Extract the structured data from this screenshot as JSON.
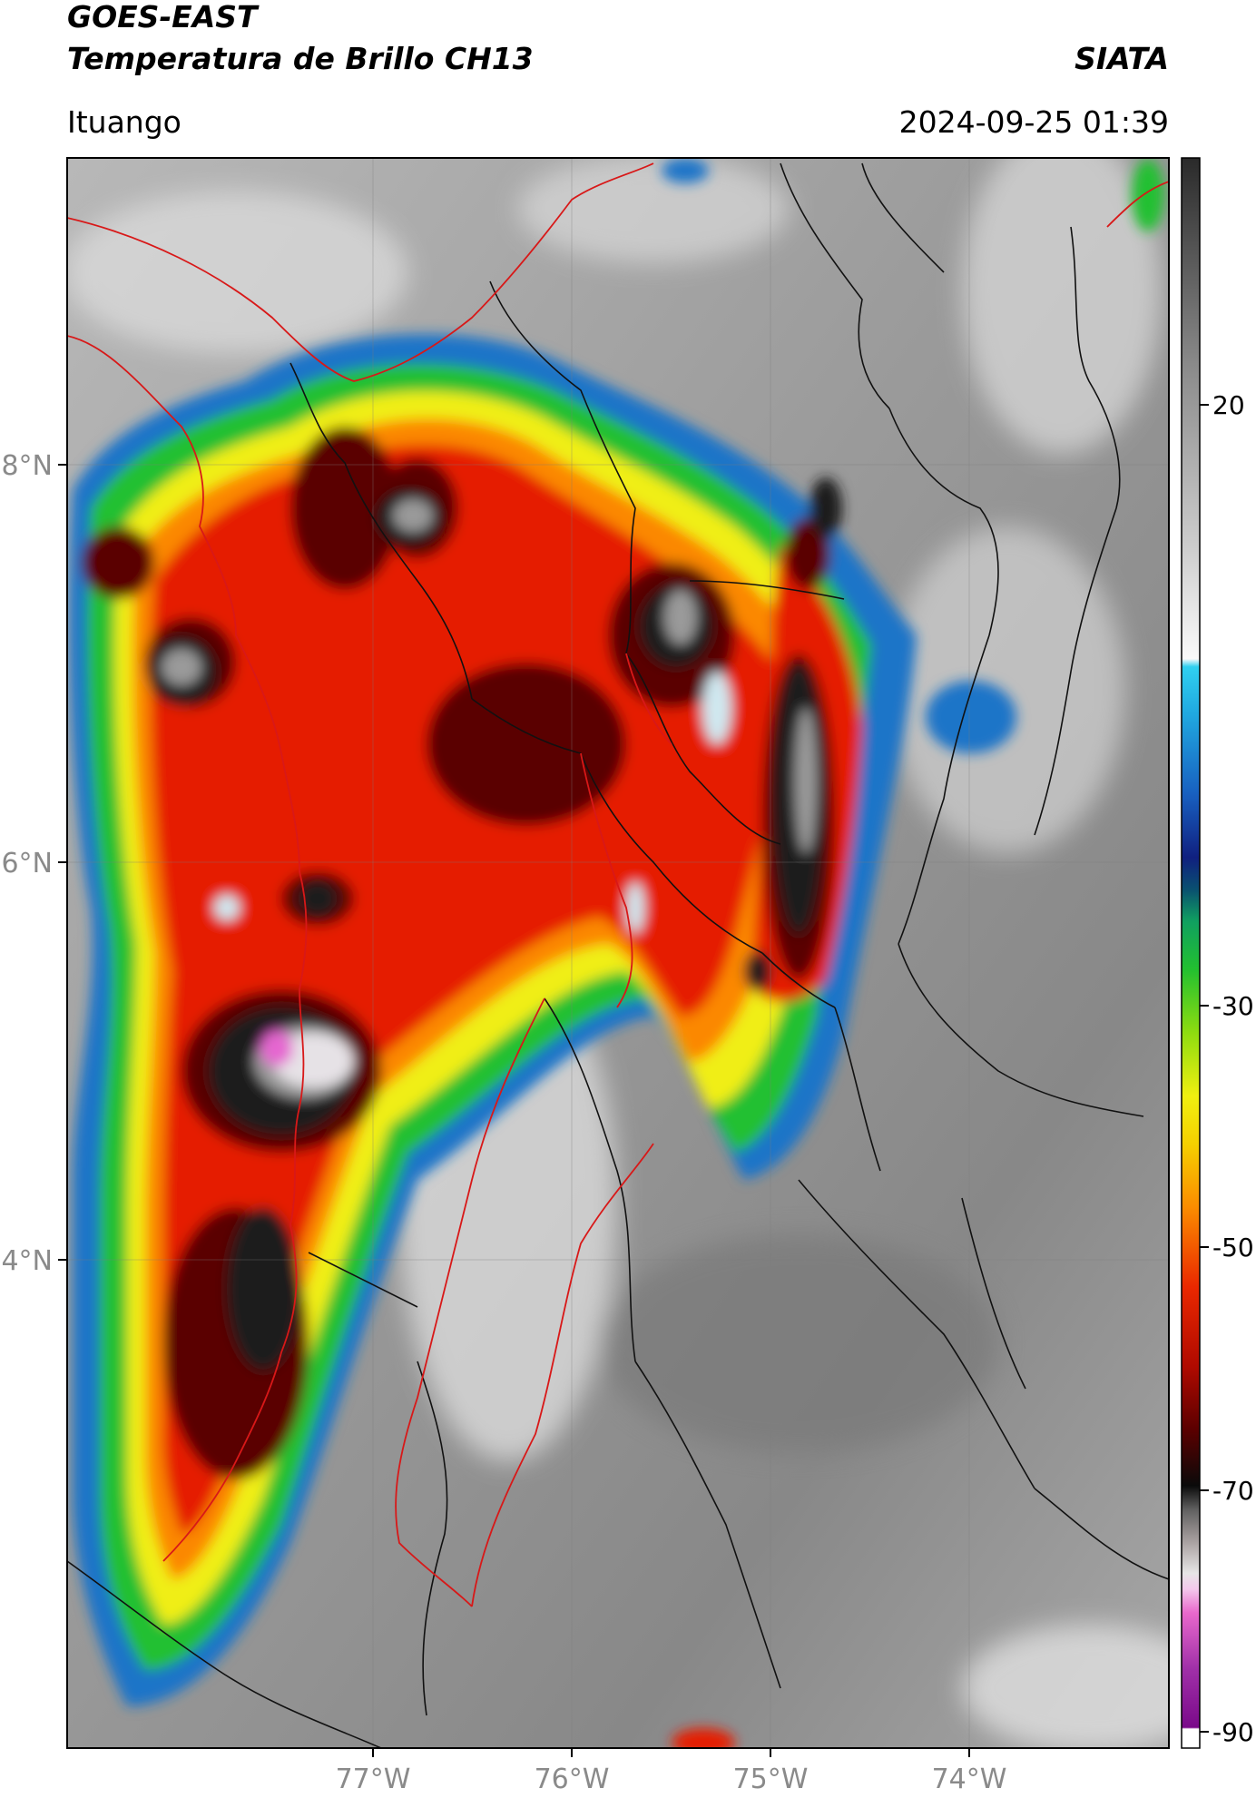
{
  "header": {
    "title_line1": "GOES-EAST",
    "title_line2": "Temperatura de Brillo CH13",
    "brand": "SIATA",
    "location": "Ituango",
    "timestamp": "2024-09-25 01:39"
  },
  "map": {
    "lat_labels": [
      "8°N",
      "6°N",
      "4°N"
    ],
    "lon_labels": [
      "77°W",
      "76°W",
      "75°W",
      "74°W"
    ]
  },
  "colorbar": {
    "tick_labels": [
      "20",
      "-30",
      "-50",
      "-70",
      "-90"
    ],
    "range": [
      -90,
      35
    ],
    "colors": {
      "gray_warm": "#3a3a3a",
      "gray_cold": "#f2f2f2",
      "cyan": "#22c8e8",
      "blue": "#1840a8",
      "green": "#22c030",
      "yellow": "#f0ef10",
      "orange": "#fb8c00",
      "red": "#e51400",
      "dark_red": "#4a0000",
      "black": "#0a0a0a",
      "pink": "#f08ad8",
      "purple": "#9020a0"
    }
  }
}
